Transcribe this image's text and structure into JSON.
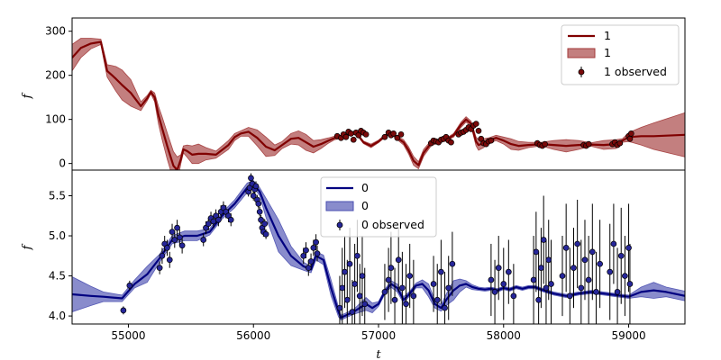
{
  "chart_data": [
    {
      "type": "line",
      "panel": "top",
      "ylabel": "f",
      "xlabel": "",
      "xlim": [
        54550,
        59450
      ],
      "ylim": [
        -15,
        330
      ],
      "yticks": [
        0,
        100,
        200,
        300
      ],
      "legend_placement": "top-right",
      "colors": {
        "line": "#800000",
        "band": "#a33a3a",
        "marker": "#7a0a0a"
      },
      "legend": {
        "line_label": "1",
        "band_label": "1",
        "points_label": "1 observed"
      },
      "model": {
        "name": "1",
        "x": [
          54550,
          54620,
          54700,
          54780,
          54830,
          54870,
          54900,
          54950,
          55020,
          55100,
          55150,
          55180,
          55210,
          55240,
          55270,
          55310,
          55360,
          55390,
          55420,
          55440,
          55470,
          55510,
          55560,
          55620,
          55700,
          55800,
          55850,
          55900,
          55960,
          56030,
          56100,
          56170,
          56230,
          56300,
          56360,
          56420,
          56480,
          56540,
          56600,
          56650,
          56700,
          56760,
          56820,
          56880,
          56940,
          57000,
          57050,
          57100,
          57150,
          57200,
          57240,
          57280,
          57320,
          57360,
          57420,
          57480,
          57540,
          57600,
          57660,
          57700,
          57740,
          57780,
          57800,
          57840,
          57880,
          57940,
          58000,
          58060,
          58120,
          58200,
          58300,
          58400,
          58500,
          58600,
          58700,
          58800,
          58900,
          58950,
          59000,
          59100,
          59200,
          59450
        ],
        "y": [
          240,
          262,
          272,
          276,
          210,
          200,
          192,
          178,
          160,
          130,
          148,
          162,
          150,
          110,
          80,
          40,
          -5,
          -15,
          10,
          32,
          28,
          20,
          22,
          22,
          20,
          42,
          60,
          68,
          72,
          58,
          38,
          30,
          42,
          56,
          58,
          48,
          38,
          44,
          52,
          58,
          60,
          66,
          70,
          48,
          40,
          50,
          62,
          70,
          58,
          48,
          30,
          6,
          -4,
          24,
          46,
          50,
          54,
          64,
          88,
          100,
          90,
          50,
          42,
          46,
          52,
          58,
          52,
          44,
          40,
          42,
          44,
          42,
          40,
          42,
          43,
          42,
          44,
          52,
          60,
          62,
          62,
          65
        ]
      },
      "band_halfwidth": [
        30,
        22,
        12,
        6,
        14,
        22,
        28,
        34,
        30,
        10,
        6,
        4,
        10,
        20,
        26,
        30,
        32,
        30,
        10,
        8,
        14,
        20,
        22,
        14,
        8,
        10,
        8,
        6,
        10,
        18,
        22,
        12,
        8,
        12,
        16,
        18,
        14,
        10,
        6,
        4,
        3,
        3,
        3,
        3,
        4,
        3,
        3,
        3,
        4,
        6,
        8,
        10,
        8,
        8,
        6,
        3,
        3,
        4,
        6,
        6,
        6,
        10,
        12,
        10,
        6,
        6,
        8,
        12,
        10,
        6,
        4,
        10,
        14,
        10,
        4,
        10,
        10,
        4,
        10,
        20,
        30,
        50
      ],
      "observed": {
        "name": "1 observed",
        "x": [
          56670,
          56700,
          56720,
          56740,
          56760,
          56780,
          56800,
          56820,
          56840,
          56860,
          56880,
          56900,
          57050,
          57080,
          57100,
          57120,
          57150,
          57180,
          57420,
          57440,
          57460,
          57480,
          57500,
          57520,
          57540,
          57560,
          57580,
          57640,
          57660,
          57680,
          57700,
          57720,
          57740,
          57760,
          57780,
          57800,
          57820,
          57840,
          57860,
          57880,
          57900,
          58270,
          58290,
          58310,
          58330,
          58640,
          58660,
          58680,
          58870,
          58890,
          58910,
          58930,
          59000,
          59010,
          59020
        ],
        "y": [
          62,
          58,
          66,
          60,
          72,
          68,
          54,
          70,
          64,
          74,
          70,
          66,
          60,
          70,
          64,
          68,
          58,
          66,
          46,
          52,
          50,
          48,
          54,
          56,
          60,
          52,
          48,
          66,
          70,
          72,
          76,
          82,
          78,
          86,
          90,
          74,
          56,
          46,
          44,
          50,
          52,
          46,
          42,
          40,
          44,
          42,
          40,
          44,
          44,
          48,
          42,
          46,
          62,
          56,
          68
        ],
        "err": [
          5,
          5,
          5,
          5,
          5,
          5,
          5,
          5,
          5,
          5,
          5,
          5,
          5,
          5,
          5,
          5,
          5,
          5,
          5,
          5,
          5,
          5,
          5,
          5,
          5,
          5,
          5,
          5,
          5,
          5,
          5,
          5,
          5,
          5,
          5,
          5,
          5,
          5,
          5,
          5,
          5,
          5,
          5,
          5,
          5,
          5,
          5,
          5,
          5,
          5,
          5,
          5,
          5,
          5,
          5
        ]
      }
    },
    {
      "type": "line",
      "panel": "bottom",
      "ylabel": "f",
      "xlabel": "t",
      "xlim": [
        54550,
        59450
      ],
      "ylim": [
        3.9,
        5.82
      ],
      "yticks": [
        4.0,
        4.5,
        5.0,
        5.5
      ],
      "yticks_labels": [
        "4.0",
        "4.5",
        "5.0",
        "5.5"
      ],
      "xticks": [
        55000,
        56000,
        57000,
        58000,
        59000
      ],
      "legend_placement": "upper-center",
      "colors": {
        "line": "#000080",
        "band": "#4a4fb0",
        "marker": "#26269a"
      },
      "legend": {
        "line_label": "0",
        "band_label": "0",
        "points_label": "0 observed"
      },
      "model": {
        "name": "0",
        "x": [
          54550,
          54700,
          54800,
          54950,
          55050,
          55150,
          55250,
          55350,
          55450,
          55550,
          55650,
          55750,
          55850,
          55950,
          56000,
          56050,
          56100,
          56200,
          56300,
          56400,
          56460,
          56500,
          56560,
          56620,
          56680,
          56700,
          56800,
          56900,
          56950,
          57000,
          57050,
          57100,
          57150,
          57200,
          57250,
          57300,
          57350,
          57400,
          57450,
          57500,
          57550,
          57600,
          57650,
          57700,
          57750,
          57800,
          57850,
          57900,
          57950,
          58000,
          58050,
          58100,
          58150,
          58200,
          58250,
          58300,
          58400,
          58500,
          58600,
          58700,
          58800,
          58900,
          58950,
          59000,
          59100,
          59200,
          59300,
          59450
        ],
        "y": [
          4.27,
          4.25,
          4.24,
          4.22,
          4.4,
          4.52,
          4.72,
          4.95,
          5.0,
          5.0,
          5.05,
          5.25,
          5.4,
          5.6,
          5.65,
          5.55,
          5.35,
          5.0,
          4.75,
          4.62,
          4.58,
          4.75,
          4.7,
          4.35,
          4.05,
          3.98,
          4.05,
          4.15,
          4.1,
          4.15,
          4.3,
          4.4,
          4.35,
          4.2,
          4.28,
          4.38,
          4.4,
          4.32,
          4.15,
          4.1,
          4.22,
          4.32,
          4.38,
          4.4,
          4.36,
          4.34,
          4.33,
          4.34,
          4.32,
          4.35,
          4.33,
          4.36,
          4.34,
          4.36,
          4.36,
          4.33,
          4.28,
          4.25,
          4.28,
          4.3,
          4.28,
          4.26,
          4.25,
          4.24,
          4.3,
          4.32,
          4.3,
          4.25
        ]
      },
      "band_halfwidth": [
        0.22,
        0.12,
        0.06,
        0.04,
        0.05,
        0.1,
        0.05,
        0.05,
        0.06,
        0.06,
        0.04,
        0.04,
        0.05,
        0.06,
        0.04,
        0.05,
        0.12,
        0.2,
        0.12,
        0.05,
        0.04,
        0.05,
        0.06,
        0.1,
        0.06,
        0.03,
        0.03,
        0.08,
        0.06,
        0.03,
        0.03,
        0.04,
        0.05,
        0.04,
        0.03,
        0.03,
        0.05,
        0.08,
        0.05,
        0.04,
        0.08,
        0.12,
        0.08,
        0.04,
        0.03,
        0.02,
        0.02,
        0.02,
        0.02,
        0.02,
        0.02,
        0.02,
        0.02,
        0.02,
        0.02,
        0.02,
        0.02,
        0.02,
        0.02,
        0.02,
        0.02,
        0.02,
        0.02,
        0.02,
        0.06,
        0.1,
        0.06,
        0.06
      ],
      "observed": {
        "name": "0 observed",
        "x": [
          54960,
          55010,
          55250,
          55270,
          55290,
          55310,
          55330,
          55350,
          55370,
          55390,
          55410,
          55430,
          55600,
          55620,
          55640,
          55660,
          55680,
          55700,
          55720,
          55740,
          55760,
          55780,
          55800,
          55820,
          55960,
          55970,
          55980,
          55990,
          56000,
          56010,
          56020,
          56030,
          56040,
          56050,
          56060,
          56070,
          56080,
          56090,
          56100,
          56400,
          56420,
          56440,
          56460,
          56480,
          56500,
          56510,
          56690,
          56710,
          56730,
          56750,
          56770,
          56790,
          56810,
          56830,
          56850,
          56870,
          56890,
          57050,
          57080,
          57100,
          57130,
          57160,
          57190,
          57220,
          57250,
          57280,
          57440,
          57470,
          57500,
          57530,
          57560,
          57590,
          57900,
          57930,
          57960,
          58000,
          58040,
          58080,
          58240,
          58260,
          58280,
          58300,
          58320,
          58340,
          58360,
          58380,
          58470,
          58500,
          58530,
          58560,
          58590,
          58620,
          58650,
          58680,
          58710,
          58740,
          58770,
          58850,
          58880,
          58910,
          58940,
          58970,
          59000,
          59010
        ],
        "y": [
          4.07,
          4.38,
          4.6,
          4.75,
          4.9,
          4.85,
          4.7,
          5.05,
          4.95,
          5.1,
          4.98,
          4.88,
          4.95,
          5.1,
          5.15,
          5.22,
          5.18,
          5.25,
          5.2,
          5.3,
          5.35,
          5.3,
          5.25,
          5.2,
          5.55,
          5.6,
          5.72,
          5.65,
          5.5,
          5.58,
          5.62,
          5.45,
          5.4,
          5.3,
          5.2,
          5.1,
          5.05,
          5.15,
          5.02,
          4.75,
          4.82,
          4.6,
          4.68,
          4.85,
          4.92,
          4.78,
          4.1,
          4.35,
          4.55,
          4.2,
          4.65,
          4.05,
          4.4,
          4.75,
          4.25,
          4.5,
          4.15,
          4.3,
          4.45,
          4.6,
          4.2,
          4.7,
          4.35,
          4.15,
          4.5,
          4.25,
          4.4,
          4.2,
          4.55,
          4.1,
          4.35,
          4.65,
          4.45,
          4.3,
          4.6,
          4.4,
          4.55,
          4.25,
          4.45,
          4.8,
          4.2,
          4.6,
          4.95,
          4.35,
          4.7,
          4.4,
          4.5,
          4.85,
          4.25,
          4.6,
          4.9,
          4.35,
          4.7,
          4.45,
          4.8,
          4.3,
          4.65,
          4.55,
          4.9,
          4.3,
          4.75,
          4.5,
          4.85,
          4.4
        ],
        "err": [
          0.05,
          0.06,
          0.08,
          0.1,
          0.1,
          0.1,
          0.1,
          0.1,
          0.1,
          0.1,
          0.1,
          0.1,
          0.08,
          0.08,
          0.08,
          0.08,
          0.08,
          0.08,
          0.08,
          0.08,
          0.08,
          0.08,
          0.08,
          0.08,
          0.06,
          0.06,
          0.06,
          0.06,
          0.06,
          0.06,
          0.06,
          0.06,
          0.06,
          0.06,
          0.06,
          0.06,
          0.06,
          0.06,
          0.06,
          0.1,
          0.1,
          0.1,
          0.1,
          0.1,
          0.1,
          0.1,
          0.4,
          0.5,
          0.45,
          0.5,
          0.45,
          0.4,
          0.5,
          0.45,
          0.4,
          0.5,
          0.45,
          0.35,
          0.4,
          0.45,
          0.4,
          0.4,
          0.45,
          0.5,
          0.4,
          0.45,
          0.35,
          0.45,
          0.4,
          0.45,
          0.4,
          0.4,
          0.45,
          0.4,
          0.4,
          0.45,
          0.4,
          0.4,
          0.55,
          0.5,
          0.6,
          0.5,
          0.55,
          0.6,
          0.5,
          0.55,
          0.5,
          0.55,
          0.6,
          0.5,
          0.55,
          0.6,
          0.5,
          0.55,
          0.6,
          0.5,
          0.55,
          0.6,
          0.5,
          0.55,
          0.6,
          0.5,
          0.55,
          0.5
        ]
      }
    }
  ]
}
